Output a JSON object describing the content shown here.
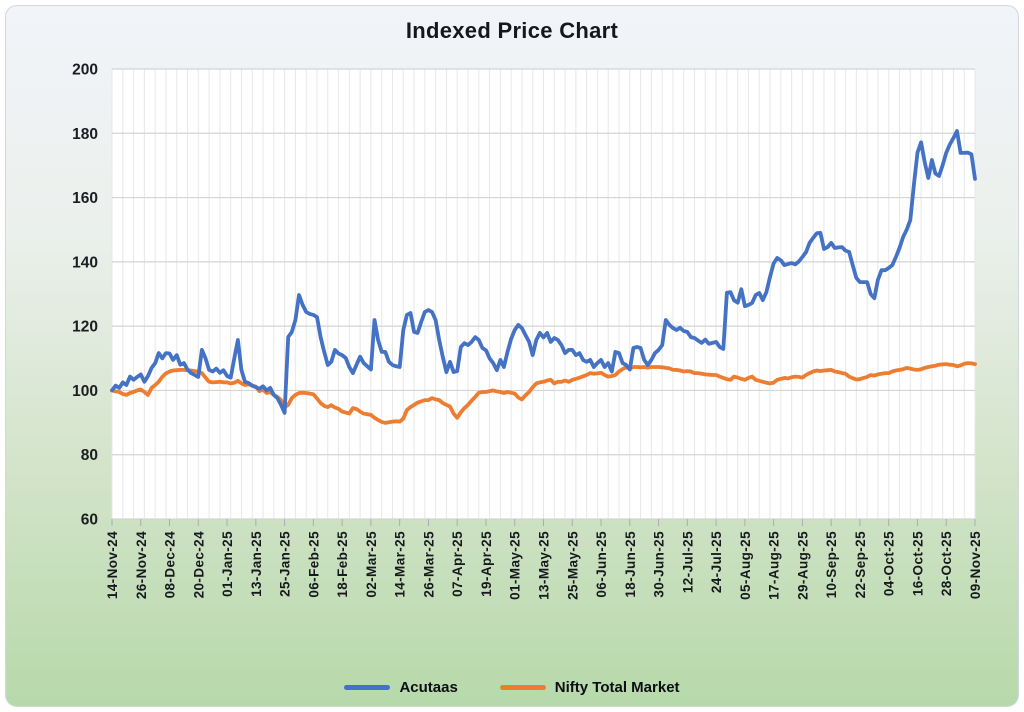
{
  "card": {
    "title": "Indexed Price Chart"
  },
  "legend": {
    "items": [
      {
        "label": "Acutaas",
        "color": "#4472C4"
      },
      {
        "label": "Nifty Total Market",
        "color": "#ED7D31"
      }
    ]
  },
  "chart_data": {
    "type": "line",
    "title": "Indexed Price Chart",
    "xlabel": "",
    "ylabel": "",
    "ylim": [
      60,
      200
    ],
    "y_tick_step": 20,
    "grid": true,
    "legend_position": "bottom",
    "x_tick_every": 8,
    "x_tick_labels": [
      "14-Nov-24",
      "26-Nov-24",
      "08-Dec-24",
      "20-Dec-24",
      "01-Jan-25",
      "13-Jan-25",
      "25-Jan-25",
      "06-Feb-25",
      "18-Feb-25",
      "02-Mar-25",
      "14-Mar-25",
      "26-Mar-25",
      "07-Apr-25",
      "19-Apr-25",
      "01-May-25",
      "13-May-25",
      "25-May-25",
      "06-Jun-25",
      "18-Jun-25",
      "30-Jun-25",
      "12-Jul-25",
      "24-Jul-25",
      "05-Aug-25",
      "17-Aug-25",
      "29-Aug-25",
      "10-Sep-25",
      "22-Sep-25",
      "04-Oct-25",
      "16-Oct-25",
      "28-Oct-25",
      "09-Nov-25"
    ],
    "series": [
      {
        "name": "Acutaas",
        "color": "#4472C4",
        "values": [
          100,
          101.5,
          100.8,
          102.5,
          101.7,
          104.3,
          103.3,
          104.2,
          105,
          102.7,
          104.5,
          107,
          108.5,
          111.6,
          110,
          111.6,
          111.5,
          109.5,
          111,
          108,
          108.5,
          106.5,
          105.4,
          104.8,
          104.2,
          112.6,
          110,
          106.4,
          105.9,
          106.8,
          105.5,
          106.3,
          104.5,
          104,
          110,
          115.7,
          106.4,
          102.7,
          102.3,
          101.5,
          101,
          100.5,
          101.3,
          100,
          100.8,
          98.6,
          97.6,
          95.5,
          93,
          116.6,
          118.2,
          121.9,
          129.7,
          126.6,
          124.4,
          123.8,
          123.5,
          122.8,
          116.6,
          112,
          107.9,
          108.9,
          112.6,
          111.5,
          111,
          110.1,
          107.3,
          105.4,
          108,
          110.5,
          108.5,
          107.5,
          106.5,
          121.9,
          115.7,
          112,
          112,
          108.9,
          107.9,
          107.5,
          107.3,
          118.8,
          123.5,
          124.1,
          118.2,
          117.9,
          121.3,
          124.4,
          125,
          124.4,
          121.9,
          115.7,
          110.4,
          105.7,
          108.9,
          105.7,
          106,
          113.5,
          114.7,
          114.1,
          115.1,
          116.6,
          115.7,
          113.2,
          112.5,
          110,
          108.5,
          106.3,
          109.5,
          107.3,
          112,
          116,
          118.8,
          120.4,
          119.4,
          117.2,
          115.1,
          111,
          115.7,
          117.9,
          116.5,
          117.9,
          115.1,
          116.3,
          115.7,
          114.1,
          111.6,
          112.6,
          112.6,
          111,
          111.6,
          109.5,
          108.9,
          109.5,
          107.3,
          108.5,
          109.5,
          107.3,
          108.5,
          105.9,
          112,
          111.6,
          108.5,
          107.9,
          106.5,
          113.2,
          113.5,
          113.2,
          109.5,
          107.9,
          109.5,
          111.6,
          112.6,
          114.1,
          121.9,
          120.4,
          119.4,
          118.8,
          119.5,
          118.5,
          118.2,
          116.6,
          116.3,
          115.5,
          114.8,
          115.8,
          114.5,
          114.8,
          115.1,
          113.5,
          112.9,
          130.4,
          130.6,
          128,
          127.3,
          131.5,
          126.2,
          126.6,
          127.2,
          129.7,
          130.3,
          128.1,
          130.6,
          135.3,
          139.5,
          141.2,
          140.5,
          139,
          139.3,
          139.6,
          139.2,
          140.1,
          141.5,
          143,
          145.9,
          147.5,
          148.9,
          149,
          144,
          144.6,
          145.9,
          144.3,
          144.5,
          144.6,
          143.5,
          143.1,
          139,
          135,
          133.7,
          133.7,
          133.7,
          130,
          128.7,
          134.4,
          137.4,
          137.4,
          138.1,
          139,
          141.5,
          144.3,
          147.7,
          150,
          153,
          164,
          174,
          177.2,
          171,
          166.1,
          171.7,
          167.5,
          166.7,
          170,
          173.9,
          176.5,
          178.5,
          180.7,
          173.9,
          173.9,
          174,
          173.5,
          165.8
        ]
      },
      {
        "name": "Nifty Total Market",
        "color": "#ED7D31",
        "values": [
          100,
          99.7,
          99.5,
          98.9,
          98.6,
          99.2,
          99.5,
          100,
          100.3,
          99.5,
          98.6,
          100.8,
          101.7,
          102.7,
          104.2,
          105.3,
          105.9,
          106.2,
          106.3,
          106.4,
          106.4,
          106.3,
          106.2,
          106,
          105.9,
          105.4,
          104,
          102.7,
          102.5,
          102.6,
          102.7,
          102.5,
          102.5,
          102.2,
          102.4,
          103,
          102.2,
          101.7,
          101.9,
          101.5,
          101.2,
          99.8,
          100.3,
          99.2,
          99.5,
          98.6,
          98,
          97,
          94.8,
          95.5,
          97.6,
          98.6,
          99.2,
          99.3,
          99.2,
          99,
          98.8,
          97.5,
          96.1,
          95.2,
          94.8,
          95.4,
          94.7,
          94.3,
          93.4,
          93.1,
          92.8,
          94.5,
          94.2,
          93.4,
          92.8,
          92.6,
          92.4,
          91.5,
          90.8,
          90.2,
          89.9,
          90.1,
          90.3,
          90.4,
          90.3,
          91.2,
          93.9,
          94.8,
          95.5,
          96.2,
          96.6,
          97,
          97,
          97.6,
          97.2,
          97,
          96.1,
          95.5,
          95,
          92.8,
          91.5,
          93.2,
          94.5,
          95.5,
          96.8,
          98,
          99.3,
          99.5,
          99.5,
          99.8,
          100,
          99.7,
          99.5,
          99.2,
          99.5,
          99.3,
          99,
          97.8,
          97.2,
          98.5,
          99.5,
          101,
          102.2,
          102.5,
          102.7,
          103.1,
          103.3,
          102.2,
          102.7,
          102.7,
          103.1,
          102.7,
          103.3,
          103.6,
          104,
          104.4,
          104.8,
          105.4,
          105.2,
          105.3,
          105.5,
          104.8,
          104.3,
          104.5,
          104.8,
          105.9,
          106.6,
          107.3,
          106.8,
          107.3,
          107.3,
          107.2,
          107.3,
          107.1,
          107.3,
          107.3,
          107.3,
          107.2,
          107,
          106.9,
          106.4,
          106.4,
          106.2,
          105.9,
          106,
          105.9,
          105.4,
          105.4,
          105.2,
          105,
          104.9,
          104.8,
          104.8,
          104.3,
          103.9,
          103.5,
          103.3,
          104.3,
          104,
          103.6,
          103.3,
          103.9,
          104.3,
          103.3,
          103,
          102.7,
          102.4,
          102.2,
          102.4,
          103.3,
          103.6,
          103.9,
          103.7,
          104.1,
          104.3,
          104.2,
          104,
          104.8,
          105.4,
          105.9,
          106.2,
          106,
          106.2,
          106.3,
          106.4,
          105.9,
          105.7,
          105.4,
          105.2,
          104.3,
          103.8,
          103.4,
          103.5,
          103.9,
          104.2,
          104.8,
          104.6,
          105,
          105.2,
          105.4,
          105.4,
          105.9,
          106.2,
          106.4,
          106.6,
          107,
          106.8,
          106.5,
          106.4,
          106.6,
          107,
          107.3,
          107.5,
          107.7,
          108,
          108.1,
          108.2,
          108,
          107.9,
          107.5,
          107.8,
          108.3,
          108.5,
          108.4,
          108.2
        ]
      }
    ]
  }
}
